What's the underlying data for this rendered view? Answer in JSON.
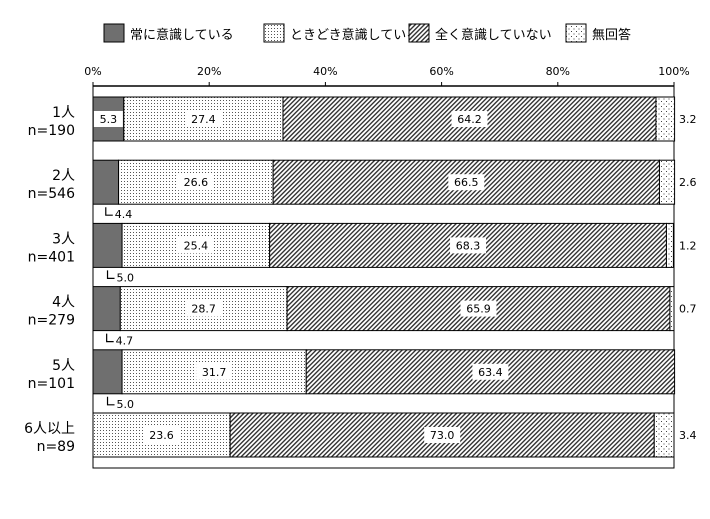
{
  "chart_data": {
    "type": "bar",
    "stacked": true,
    "orientation": "horizontal",
    "xlim": [
      0,
      100
    ],
    "x_ticks": [
      "0%",
      "20%",
      "40%",
      "60%",
      "80%",
      "100%"
    ],
    "legend": {
      "placement": "top"
    },
    "categories": [
      {
        "label": "1人",
        "n": "n=190"
      },
      {
        "label": "2人",
        "n": "n=546"
      },
      {
        "label": "3人",
        "n": "n=401"
      },
      {
        "label": "4人",
        "n": "n=279"
      },
      {
        "label": "5人",
        "n": "n=101"
      },
      {
        "label": "6人以上",
        "n": "n=89"
      }
    ],
    "series": [
      {
        "name": "常に意識している",
        "pattern": "solid-gray",
        "color": "#6f6f6f",
        "values": [
          5.3,
          4.4,
          5.0,
          4.7,
          5.0,
          0
        ]
      },
      {
        "name": "ときどき意識している",
        "pattern": "fine-dots",
        "color": "#ffffff",
        "values": [
          27.4,
          26.6,
          25.4,
          28.7,
          31.7,
          23.6
        ]
      },
      {
        "name": "全く意識していない",
        "pattern": "diagonal-hatch",
        "color": "#333333",
        "values": [
          64.2,
          66.5,
          68.3,
          65.9,
          63.4,
          73.0
        ]
      },
      {
        "name": "無回答",
        "pattern": "sparse-dots",
        "color": "#ffffff",
        "values": [
          3.2,
          2.6,
          1.2,
          0.7,
          0,
          3.4
        ]
      }
    ],
    "data_labels": [
      [
        "5.3",
        "27.4",
        "64.2",
        "3.2"
      ],
      [
        "4.4",
        "26.6",
        "66.5",
        "2.6"
      ],
      [
        "5.0",
        "25.4",
        "68.3",
        "1.2"
      ],
      [
        "4.7",
        "28.7",
        "65.9",
        "0.7"
      ],
      [
        "5.0",
        "31.7",
        "63.4",
        ""
      ],
      [
        "",
        "23.6",
        "73.0",
        "3.4"
      ]
    ]
  }
}
